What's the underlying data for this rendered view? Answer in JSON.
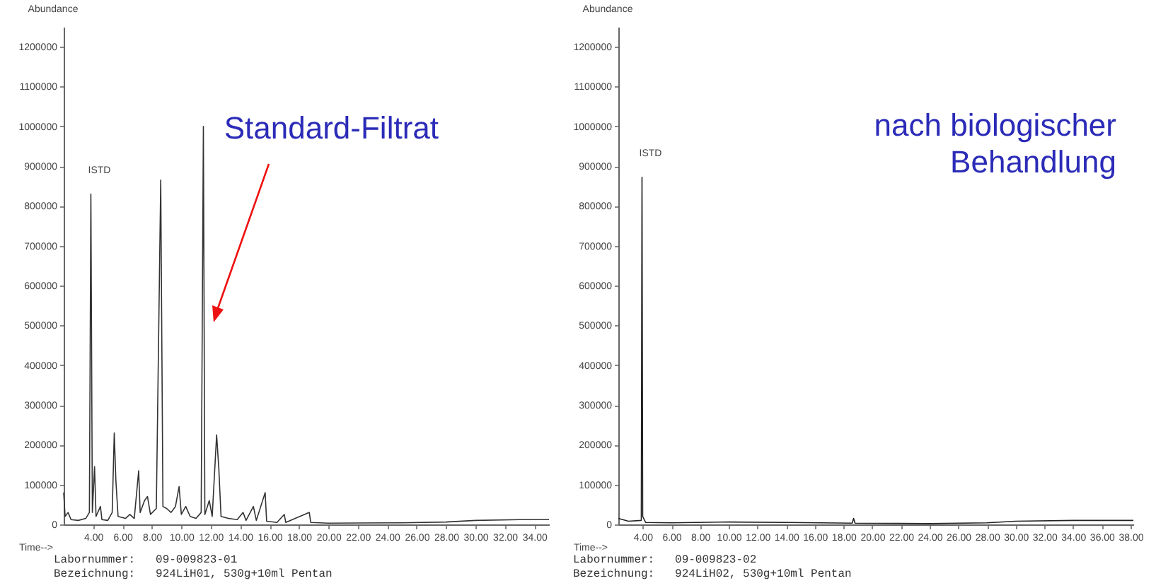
{
  "chart_data": [
    {
      "type": "line",
      "title": "Standard-Filtrat",
      "xlabel": "Time-->",
      "ylabel": "Abundance",
      "xlim": [
        2,
        35
      ],
      "ylim": [
        0,
        1250000
      ],
      "xticks": [
        {
          "value": 4,
          "label": "4.00"
        },
        {
          "value": 6,
          "label": "6.00"
        },
        {
          "value": 8,
          "label": "8.00"
        },
        {
          "value": 10,
          "label": "10.00"
        },
        {
          "value": 12,
          "label": "12.00"
        },
        {
          "value": 14,
          "label": "14.00"
        },
        {
          "value": 16,
          "label": "16.00"
        },
        {
          "value": 18,
          "label": "18.00"
        },
        {
          "value": 20,
          "label": "20.00"
        },
        {
          "value": 22,
          "label": "22.00"
        },
        {
          "value": 24,
          "label": "24.00"
        },
        {
          "value": 26,
          "label": "26.00"
        },
        {
          "value": 28,
          "label": "28.00"
        },
        {
          "value": 30,
          "label": "30.00"
        },
        {
          "value": 32,
          "label": "32.00"
        },
        {
          "value": 34,
          "label": "34.00"
        }
      ],
      "yticks": [
        0,
        100000,
        200000,
        300000,
        400000,
        500000,
        600000,
        700000,
        800000,
        900000,
        1000000,
        1100000,
        1200000
      ],
      "grid": false,
      "series": [
        {
          "color": "#333333",
          "x": [
            2.0,
            2.1,
            2.3,
            2.5,
            3.0,
            3.5,
            3.75,
            3.85,
            3.95,
            4.1,
            4.2,
            4.5,
            4.6,
            5.0,
            5.3,
            5.44,
            5.55,
            5.7,
            6.2,
            6.5,
            6.8,
            7.1,
            7.2,
            7.5,
            7.7,
            7.9,
            8.3,
            8.6,
            8.75,
            9.0,
            9.3,
            9.6,
            9.85,
            10.0,
            10.3,
            10.6,
            11.0,
            11.35,
            11.5,
            11.6,
            11.9,
            12.1,
            12.4,
            12.55,
            12.7,
            13.2,
            13.8,
            14.2,
            14.4,
            14.9,
            15.1,
            15.7,
            15.8,
            16.5,
            17.0,
            17.1,
            18.7,
            18.8,
            20.0,
            25.0,
            28.0,
            30.0,
            33.0,
            35.0
          ],
          "values": [
            80000,
            20000,
            30000,
            12000,
            10000,
            15000,
            30000,
            830000,
            30000,
            145000,
            20000,
            45000,
            12000,
            10000,
            30000,
            230000,
            110000,
            20000,
            15000,
            25000,
            15000,
            135000,
            30000,
            60000,
            70000,
            25000,
            40000,
            865000,
            45000,
            40000,
            30000,
            45000,
            95000,
            25000,
            45000,
            20000,
            15000,
            30000,
            1000000,
            25000,
            60000,
            20000,
            225000,
            140000,
            20000,
            15000,
            12000,
            30000,
            10000,
            45000,
            10000,
            80000,
            8000,
            5000,
            25000,
            5000,
            30000,
            5000,
            3000,
            4000,
            6000,
            10000,
            12000,
            12000
          ]
        }
      ],
      "annotations": [
        {
          "text": "ISTD",
          "x": 3.85,
          "y": 830000
        },
        "Labornummer:   09-009823-01",
        "Bezeichnung:   924LiH01, 530g+10ml Pentan"
      ]
    },
    {
      "type": "line",
      "title": "nach biologischer Behandlung",
      "xlabel": "Time-->",
      "ylabel": "Abundance",
      "xlim": [
        2.3,
        38.2
      ],
      "ylim": [
        0,
        1250000
      ],
      "xticks": [
        {
          "value": 4,
          "label": "4.00"
        },
        {
          "value": 6,
          "label": "6.00"
        },
        {
          "value": 8,
          "label": "8.00"
        },
        {
          "value": 10,
          "label": "10.00"
        },
        {
          "value": 12,
          "label": "12.00"
        },
        {
          "value": 14,
          "label": "14.00"
        },
        {
          "value": 16,
          "label": "16.00"
        },
        {
          "value": 18,
          "label": "18.00"
        },
        {
          "value": 20,
          "label": "20.00"
        },
        {
          "value": 22,
          "label": "22.00"
        },
        {
          "value": 24,
          "label": "24.00"
        },
        {
          "value": 26,
          "label": "26.00"
        },
        {
          "value": 28,
          "label": "28.00"
        },
        {
          "value": 30,
          "label": "30.00"
        },
        {
          "value": 32,
          "label": "32.00"
        },
        {
          "value": 34,
          "label": "34.00"
        },
        {
          "value": 36,
          "label": "36.00"
        },
        {
          "value": 38,
          "label": "38.00"
        }
      ],
      "yticks": [
        0,
        100000,
        200000,
        300000,
        400000,
        500000,
        600000,
        700000,
        800000,
        900000,
        1000000,
        1100000,
        1200000
      ],
      "grid": false,
      "series": [
        {
          "color": "#222222",
          "x": [
            2.3,
            3.0,
            3.9,
            3.95,
            4.0,
            4.2,
            6.0,
            10.0,
            14.0,
            18.6,
            18.7,
            18.8,
            24.0,
            28.0,
            30.0,
            34.0,
            38.2
          ],
          "values": [
            15000,
            8000,
            10000,
            872000,
            20000,
            5000,
            4000,
            6000,
            5000,
            3000,
            15000,
            3000,
            2000,
            4000,
            8000,
            10000,
            10000
          ]
        }
      ],
      "annotations": [
        {
          "text": "ISTD",
          "x": 3.95,
          "y": 872000
        },
        "Labornummer:   09-009823-02",
        "Bezeichnung:   924LiH02, 530g+10ml Pentan"
      ]
    }
  ]
}
